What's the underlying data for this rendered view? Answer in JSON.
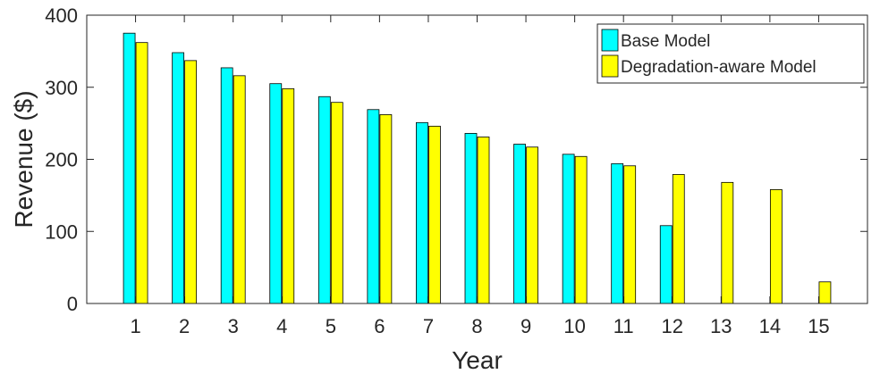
{
  "chart_data": {
    "type": "bar",
    "xlabel": "Year",
    "ylabel": "Revenue ($)",
    "categories": [
      "1",
      "2",
      "3",
      "4",
      "5",
      "6",
      "7",
      "8",
      "9",
      "10",
      "11",
      "12",
      "13",
      "14",
      "15"
    ],
    "ylim": [
      0,
      400
    ],
    "yticks": [
      0,
      100,
      200,
      300,
      400
    ],
    "grid": false,
    "legend_position": "top-right",
    "series": [
      {
        "name": "Base Model",
        "color": "#00FFFF",
        "values": [
          375,
          348,
          327,
          305,
          287,
          269,
          251,
          236,
          221,
          207,
          194,
          108,
          0,
          0,
          0
        ]
      },
      {
        "name": "Degradation-aware Model",
        "color": "#FFFF00",
        "values": [
          362,
          337,
          316,
          298,
          279,
          262,
          246,
          231,
          217,
          204,
          191,
          179,
          168,
          158,
          30
        ]
      }
    ]
  }
}
